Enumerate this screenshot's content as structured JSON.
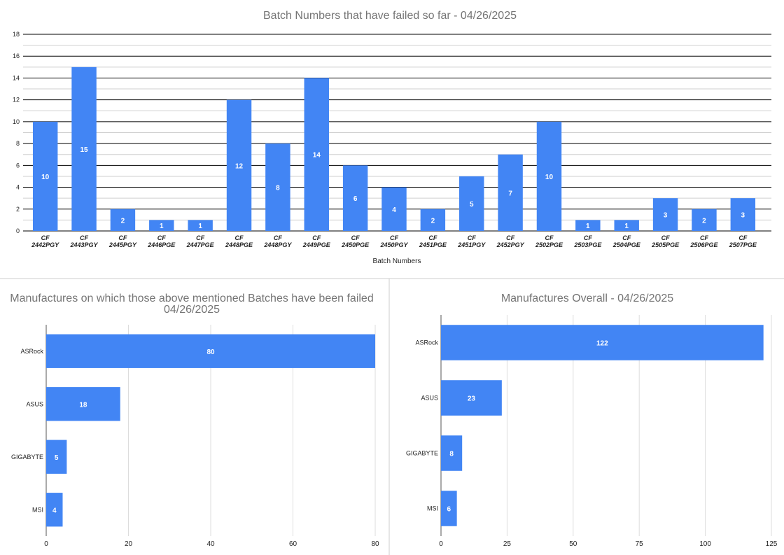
{
  "chart_data": [
    {
      "type": "bar",
      "orientation": "vertical",
      "title": "Batch Numbers that have failed so far - 04/26/2025",
      "xlabel": "Batch Numbers",
      "ylabel": "",
      "ylim": [
        0,
        18
      ],
      "yticks": [
        0,
        2,
        4,
        6,
        8,
        10,
        12,
        14,
        16,
        18
      ],
      "grid": true,
      "legend": "none",
      "bar_color": "#4285f4",
      "categories": [
        [
          "CF",
          "2442PGY"
        ],
        [
          "CF",
          "2443PGY"
        ],
        [
          "CF",
          "2445PGY"
        ],
        [
          "CF",
          "2446PGE"
        ],
        [
          "CF",
          "2447PGE"
        ],
        [
          "CF",
          "2448PGE"
        ],
        [
          "CF",
          "2448PGY"
        ],
        [
          "CF",
          "2449PGE"
        ],
        [
          "CF",
          "2450PGE"
        ],
        [
          "CF",
          "2450PGY"
        ],
        [
          "CF",
          "2451PGE"
        ],
        [
          "CF",
          "2451PGY"
        ],
        [
          "CF",
          "2452PGY"
        ],
        [
          "CF",
          "2502PGE"
        ],
        [
          "CF",
          "2503PGE"
        ],
        [
          "CF",
          "2504PGE"
        ],
        [
          "CF",
          "2505PGE"
        ],
        [
          "CF",
          "2506PGE"
        ],
        [
          "CF",
          "2507PGE"
        ]
      ],
      "values": [
        10,
        15,
        2,
        1,
        1,
        12,
        8,
        14,
        6,
        4,
        2,
        5,
        7,
        10,
        1,
        1,
        3,
        2,
        3
      ]
    },
    {
      "type": "bar",
      "orientation": "horizontal",
      "title": [
        "Manufactures on which those above mentioned Batches have been failed",
        "04/26/2025"
      ],
      "xlim": [
        0,
        80
      ],
      "xticks": [
        0,
        20,
        40,
        60,
        80
      ],
      "grid": true,
      "legend": "none",
      "bar_color": "#4285f4",
      "categories": [
        "ASRock",
        "ASUS",
        "GIGABYTE",
        "MSI"
      ],
      "values": [
        80,
        18,
        5,
        4
      ]
    },
    {
      "type": "bar",
      "orientation": "horizontal",
      "title": [
        "Manufactures Overall - 04/26/2025"
      ],
      "xlim": [
        0,
        125
      ],
      "xticks": [
        0,
        25,
        50,
        75,
        100,
        125
      ],
      "grid": true,
      "legend": "none",
      "bar_color": "#4285f4",
      "categories": [
        "ASRock",
        "ASUS",
        "GIGABYTE",
        "MSI"
      ],
      "values": [
        122,
        23,
        8,
        6
      ]
    }
  ]
}
